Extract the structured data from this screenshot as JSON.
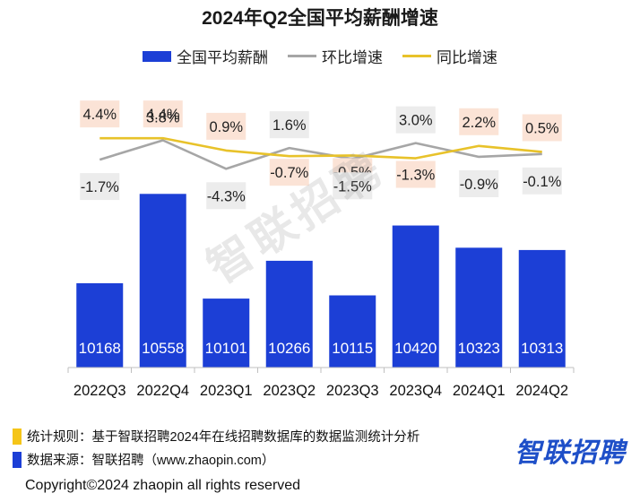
{
  "chart_data": {
    "type": "bar",
    "title": "2024年Q2全国平均薪酬增速",
    "categories": [
      "2022Q3",
      "2022Q4",
      "2023Q1",
      "2023Q2",
      "2023Q3",
      "2023Q4",
      "2024Q1",
      "2024Q2"
    ],
    "series": [
      {
        "name": "全国平均薪酬",
        "type": "bar",
        "color": "#1c3fd6",
        "values": [
          10168,
          10558,
          10101,
          10266,
          10115,
          10420,
          10323,
          10313
        ]
      },
      {
        "name": "环比增速",
        "type": "line",
        "color": "#a6a6a6",
        "values": [
          -1.7,
          3.8,
          -4.3,
          1.6,
          -1.5,
          3.0,
          -0.9,
          -0.1
        ],
        "labels": [
          "-1.7%",
          "3.8%",
          "-4.3%",
          "1.6%",
          "-1.5%",
          "3.0%",
          "-0.9%",
          "-0.1%"
        ]
      },
      {
        "name": "同比增速",
        "type": "line",
        "color": "#e8c22a",
        "values": [
          4.4,
          4.4,
          0.9,
          -0.7,
          -0.5,
          -1.3,
          2.2,
          0.5
        ],
        "labels": [
          "4.4%",
          "4.4%",
          "0.9%",
          "-0.7%",
          "-0.5%",
          "-1.3%",
          "2.2%",
          "0.5%"
        ]
      }
    ],
    "bar_ylim": [
      9800,
      10700
    ],
    "rate_ylim": [
      -20,
      8
    ],
    "legend_position": "top-center",
    "grid": false
  },
  "watermark": "智联招聘",
  "notes": [
    {
      "text": "统计规则：基于智联招聘2024年在线招聘数据库的数据监测统计分析",
      "color": "#f5c518"
    },
    {
      "text": "数据来源：智联招聘（www.zhaopin.com）",
      "color": "#1c3fd6"
    }
  ],
  "brand": "智联招聘",
  "copyright": "Copyright©2024 zhaopin all rights reserved",
  "colors": {
    "bar": "#1c3fd6",
    "mom_label_bg": "#ececec",
    "yoy_label_bg": "#fbe3d6"
  }
}
